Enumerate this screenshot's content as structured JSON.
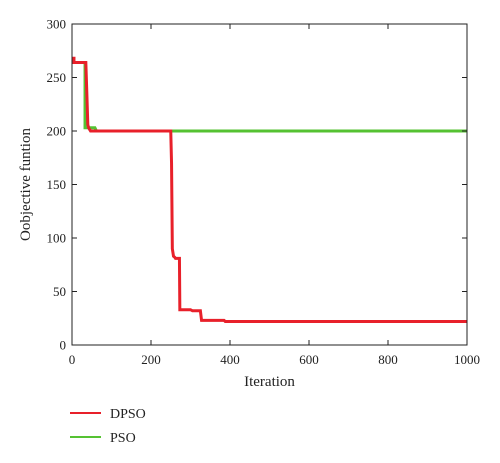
{
  "chart_data": {
    "type": "line",
    "xlabel": "Iteration",
    "ylabel": "Oobjective funtion",
    "xlim": [
      0,
      1000
    ],
    "ylim": [
      0,
      300
    ],
    "xticks": [
      0,
      200,
      400,
      600,
      800,
      1000
    ],
    "yticks": [
      0,
      50,
      100,
      150,
      200,
      250,
      300
    ],
    "grid": false,
    "legend_position": "bottom-left",
    "series": [
      {
        "name": "DPSO",
        "color": "#e8202a",
        "x": [
          0,
          5,
          5,
          35,
          38,
          40,
          42,
          47,
          250,
          252,
          254,
          257,
          260,
          262,
          272,
          273,
          300,
          305,
          325,
          328,
          385,
          388,
          1000
        ],
        "y": [
          268,
          268,
          264,
          264,
          230,
          206,
          203,
          200,
          200,
          170,
          90,
          83,
          82,
          81,
          81,
          33,
          33,
          32,
          32,
          23,
          23,
          22,
          22
        ]
      },
      {
        "name": "PSO",
        "color": "#55c232",
        "x": [
          0,
          33,
          33,
          58,
          62,
          1000
        ],
        "y": [
          264,
          264,
          203,
          203,
          200,
          200
        ]
      }
    ]
  }
}
